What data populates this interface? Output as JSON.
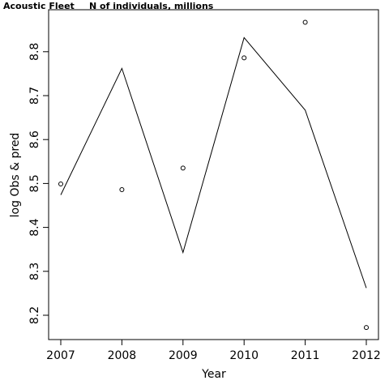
{
  "chart_data": {
    "type": "line",
    "title": "Acoustic Fleet",
    "subtitle": "N of individuals, millions",
    "xlabel": "Year",
    "ylabel": "log Obs & pred",
    "x": [
      2007,
      2008,
      2009,
      2010,
      2011,
      2012
    ],
    "xlim": [
      2007,
      2012
    ],
    "ylim": [
      8.15,
      8.9
    ],
    "x_ticks": [
      "2007",
      "2008",
      "2009",
      "2010",
      "2011",
      "2012"
    ],
    "y_ticks": [
      "8.2",
      "8.3",
      "8.4",
      "8.5",
      "8.6",
      "8.7",
      "8.8"
    ],
    "grid": false,
    "series": [
      {
        "style": "line",
        "color": "#000000",
        "values": [
          8.474,
          8.762,
          8.343,
          8.832,
          8.667,
          8.262
        ]
      },
      {
        "style": "points",
        "color": "#000000",
        "values": [
          8.499,
          8.486,
          8.535,
          8.786,
          8.867,
          8.172
        ]
      }
    ]
  }
}
